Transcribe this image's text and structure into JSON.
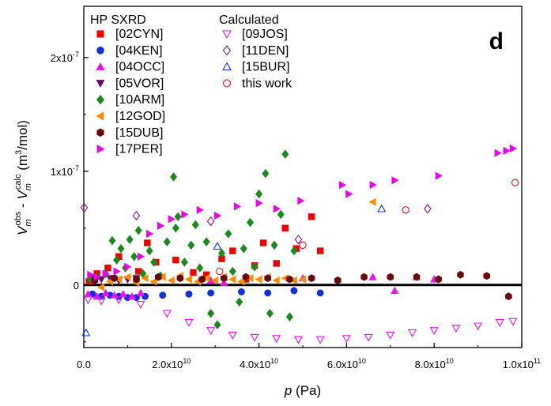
{
  "chart_data": {
    "type": "scatter",
    "panel_label": "d",
    "xlim": [
      0,
      100000000000.0
    ],
    "ylim": [
      -5.5e-08,
      2.45e-07
    ],
    "x_ticks": [
      {
        "value": 0,
        "label": "0.0"
      },
      {
        "value": 20000000000.0,
        "label": "2.0x10",
        "exp": "10"
      },
      {
        "value": 40000000000.0,
        "label": "4.0x10",
        "exp": "10"
      },
      {
        "value": 60000000000.0,
        "label": "6.0x10",
        "exp": "10"
      },
      {
        "value": 80000000000.0,
        "label": "8.0x10",
        "exp": "10"
      },
      {
        "value": 100000000000.0,
        "label": "1.0x10",
        "exp": "11"
      }
    ],
    "y_ticks": [
      {
        "value": 0,
        "label": "0"
      },
      {
        "value": 1e-07,
        "label": "1x10",
        "exp": "-7"
      },
      {
        "value": 2e-07,
        "label": "2x10",
        "exp": "-7"
      }
    ],
    "xlabel": {
      "var": "p",
      "unit": " (Pa)"
    },
    "ylabel": {
      "v": "V",
      "sub": "m",
      "sup_obs": "obs",
      "dash": " - ",
      "sup_calc": "calc",
      "unit": " (m",
      "unit_exp": "3",
      "unit_end": "/mol)"
    },
    "zero_line": 0,
    "legend_groups": [
      {
        "title": "HP SXRD",
        "position": "top-left"
      },
      {
        "title": "Calculated",
        "position": "top-center"
      }
    ],
    "series": [
      {
        "name": "[02CYN]",
        "group": 0,
        "marker": "square",
        "color": "#ee0000",
        "filled": true,
        "points": [
          [
            1200000000.0,
            3e-09
          ],
          [
            3000000000.0,
            1e-08
          ],
          [
            5500000000.0,
            1.5e-08
          ],
          [
            8000000000.0,
            2.5e-08
          ],
          [
            12500000000.0,
            1.2e-08
          ],
          [
            14500000000.0,
            3.7e-08
          ],
          [
            16500000000.0,
            2e-08
          ],
          [
            21000000000.0,
            2.2e-08
          ],
          [
            25000000000.0,
            1.1e-08
          ],
          [
            28000000000.0,
            9e-09
          ],
          [
            31500000000.0,
            2.3e-08
          ],
          [
            34000000000.0,
            3e-08
          ],
          [
            37000000000.0,
            5e-09
          ],
          [
            39000000000.0,
            1.7e-08
          ],
          [
            41000000000.0,
            3.7e-08
          ],
          [
            44000000000.0,
            1.9e-08
          ],
          [
            46000000000.0,
            5e-08
          ],
          [
            48500000000.0,
            3.2e-08
          ],
          [
            52000000000.0,
            6e-08
          ],
          [
            54000000000.0,
            3e-08
          ]
        ]
      },
      {
        "name": "[04KEN]",
        "group": 0,
        "marker": "circle",
        "color": "#1030e0",
        "filled": true,
        "points": [
          [
            2000000000.0,
            -8e-09
          ],
          [
            4000000000.0,
            -1e-08
          ],
          [
            6000000000.0,
            -9e-09
          ],
          [
            8000000000.0,
            -1e-08
          ],
          [
            10000000000.0,
            -1.1e-08
          ],
          [
            12000000000.0,
            -1.1e-08
          ],
          [
            14000000000.0,
            -1e-08
          ],
          [
            18000000000.0,
            -9e-09
          ],
          [
            24000000000.0,
            -8e-09
          ],
          [
            29000000000.0,
            -7e-09
          ],
          [
            36000000000.0,
            -6e-09
          ],
          [
            42000000000.0,
            -7e-09
          ],
          [
            48000000000.0,
            -5e-09
          ],
          [
            54000000000.0,
            -7e-09
          ]
        ]
      },
      {
        "name": "[04OCC]",
        "group": 0,
        "marker": "triangle-up",
        "color": "#ee10ee",
        "filled": true,
        "points": [
          [
            1000000000.0,
            -8e-09
          ],
          [
            3000000000.0,
            -1e-08
          ],
          [
            5000000000.0,
            -7e-09
          ],
          [
            7000000000.0,
            -9e-09
          ],
          [
            9000000000.0,
            -8e-09
          ],
          [
            11000000000.0,
            -1e-08
          ],
          [
            13000000000.0,
            -7e-09
          ],
          [
            29000000000.0,
            4e-09
          ],
          [
            32000000000.0,
            2e-09
          ],
          [
            50000000000.0,
            6e-09
          ],
          [
            66000000000.0,
            7e-09
          ],
          [
            71000000000.0,
            -5e-09
          ],
          [
            76000000000.0,
            7e-09
          ],
          [
            80000000000.0,
            5e-09
          ]
        ]
      },
      {
        "name": "[05VOR]",
        "group": 0,
        "marker": "triangle-down",
        "color": "#6a0a6a",
        "filled": true,
        "points": [
          [
            2000000000.0,
            6e-09
          ],
          [
            4000000000.0,
            5e-09
          ],
          [
            6000000000.0,
            6e-09
          ],
          [
            8000000000.0,
            4e-09
          ],
          [
            10000000000.0,
            5e-09
          ],
          [
            12000000000.0,
            6e-09
          ]
        ]
      },
      {
        "name": "[10ARM]",
        "group": 0,
        "marker": "diamond",
        "color": "#1a8a1a",
        "filled": true,
        "points": [
          [
            1500000000.0,
            5e-09
          ],
          [
            3000000000.0,
            7e-09
          ],
          [
            5000000000.0,
            1e-08
          ],
          [
            6500000000.0,
            3.9e-08
          ],
          [
            7500000000.0,
            2.2e-08
          ],
          [
            8500000000.0,
            3.2e-08
          ],
          [
            9500000000.0,
            1.5e-08
          ],
          [
            10500000000.0,
            4e-08
          ],
          [
            11500000000.0,
            2.5e-08
          ],
          [
            12500000000.0,
            4.8e-08
          ],
          [
            13500000000.0,
            1e-08
          ],
          [
            15000000000.0,
            3e-08
          ],
          [
            16000000000.0,
            2e-08
          ],
          [
            17500000000.0,
            8e-09
          ],
          [
            19000000000.0,
            3.8e-08
          ],
          [
            20500000000.0,
            9.5e-08
          ],
          [
            21000000000.0,
            5e-08
          ],
          [
            21500000000.0,
            6e-08
          ],
          [
            23000000000.0,
            2e-08
          ],
          [
            24500000000.0,
            3.5e-08
          ],
          [
            25500000000.0,
            5.3e-08
          ],
          [
            26500000000.0,
            1.5e-08
          ],
          [
            28000000000.0,
            3.8e-08
          ],
          [
            29000000000.0,
            -2.5e-08
          ],
          [
            30500000000.0,
            -3.5e-08
          ],
          [
            31500000000.0,
            2.8e-08
          ],
          [
            33000000000.0,
            4.5e-08
          ],
          [
            34000000000.0,
            1.2e-08
          ],
          [
            35500000000.0,
            -1.5e-08
          ],
          [
            36500000000.0,
            3.2e-08
          ],
          [
            38000000000.0,
            5.5e-08
          ],
          [
            39000000000.0,
            1.6e-08
          ],
          [
            40000000000.0,
            8e-08
          ],
          [
            41500000000.0,
            9.8e-08
          ],
          [
            42500000000.0,
            -2.5e-08
          ],
          [
            43500000000.0,
            3.5e-08
          ],
          [
            45000000000.0,
            6.2e-08
          ],
          [
            46000000000.0,
            1.15e-07
          ],
          [
            47000000000.0,
            -2.8e-08
          ],
          [
            48000000000.0,
            3e-08
          ]
        ]
      },
      {
        "name": "[12GOD]",
        "group": 0,
        "marker": "triangle-left",
        "color": "#ff8c00",
        "filled": true,
        "points": [
          [
            4000000000.0,
            -2e-09
          ],
          [
            6000000000.0,
            3e-09
          ],
          [
            8000000000.0,
            5e-09
          ],
          [
            10000000000.0,
            7e-09
          ],
          [
            12000000000.0,
            2e-09
          ],
          [
            14000000000.0,
            6e-09
          ],
          [
            16000000000.0,
            3e-09
          ],
          [
            18000000000.0,
            7e-09
          ],
          [
            20000000000.0,
            4e-09
          ],
          [
            22000000000.0,
            8e-09
          ],
          [
            24000000000.0,
            5e-09
          ],
          [
            26000000000.0,
            3e-09
          ],
          [
            28000000000.0,
            6e-09
          ],
          [
            30000000000.0,
            4e-09
          ],
          [
            32000000000.0,
            7e-09
          ],
          [
            34000000000.0,
            5e-09
          ],
          [
            36000000000.0,
            3e-09
          ],
          [
            38000000000.0,
            6e-09
          ],
          [
            40000000000.0,
            5e-09
          ],
          [
            42000000000.0,
            7e-09
          ],
          [
            44000000000.0,
            4e-09
          ],
          [
            46000000000.0,
            6e-09
          ],
          [
            48000000000.0,
            4e-09
          ],
          [
            50000000000.0,
            5e-09
          ],
          [
            66000000000.0,
            7.3e-08
          ]
        ]
      },
      {
        "name": "[15DUB]",
        "group": 0,
        "marker": "hexagon",
        "color": "#6a0808",
        "filled": true,
        "points": [
          [
            2500000000.0,
            4e-09
          ],
          [
            7000000000.0,
            6e-09
          ],
          [
            12000000000.0,
            5e-09
          ],
          [
            17000000000.0,
            7e-09
          ],
          [
            22000000000.0,
            6e-09
          ],
          [
            27000000000.0,
            5e-09
          ],
          [
            32000000000.0,
            6e-09
          ],
          [
            37000000000.0,
            7e-09
          ],
          [
            42000000000.0,
            6e-09
          ],
          [
            47000000000.0,
            5e-09
          ],
          [
            52000000000.0,
            6e-09
          ],
          [
            58000000000.0,
            4e-09
          ],
          [
            64000000000.0,
            7e-09
          ],
          [
            70000000000.0,
            7e-09
          ],
          [
            76000000000.0,
            7e-09
          ],
          [
            81000000000.0,
            5e-09
          ],
          [
            86000000000.0,
            9e-09
          ],
          [
            92000000000.0,
            8e-09
          ],
          [
            97000000000.0,
            -1e-08
          ]
        ]
      },
      {
        "name": "[17PER]",
        "group": 0,
        "marker": "triangle-right",
        "color": "#ee00ee",
        "filled": true,
        "points": [
          [
            1500000000.0,
            9e-09
          ],
          [
            3000000000.0,
            7e-09
          ],
          [
            5000000000.0,
            1e-08
          ],
          [
            7500000000.0,
            1.2e-08
          ],
          [
            10000000000.0,
            1.6e-08
          ],
          [
            13000000000.0,
            2.5e-08
          ],
          [
            15000000000.0,
            4.5e-08
          ],
          [
            17500000000.0,
            5.2e-08
          ],
          [
            20000000000.0,
            5.8e-08
          ],
          [
            23000000000.0,
            6.2e-08
          ],
          [
            26500000000.0,
            6.6e-08
          ],
          [
            30500000000.0,
            6.1e-08
          ],
          [
            35000000000.0,
            6.9e-08
          ],
          [
            40000000000.0,
            7.2e-08
          ],
          [
            44000000000.0,
            6.7e-08
          ],
          [
            49500000000.0,
            7.4e-08
          ],
          [
            59000000000.0,
            8.8e-08
          ],
          [
            60500000000.0,
            8e-08
          ],
          [
            66000000000.0,
            8.8e-08
          ],
          [
            71000000000.0,
            9.2e-08
          ],
          [
            81000000000.0,
            9.6e-08
          ],
          [
            94500000000.0,
            1.16e-07
          ],
          [
            96500000000.0,
            1.18e-07
          ],
          [
            98000000000.0,
            1.2e-07
          ]
        ]
      },
      {
        "name": "[09JOS]",
        "group": 1,
        "marker": "triangle-down",
        "color": "#ee10ee",
        "filled": false,
        "points": [
          [
            1000000000.0,
            -1.3e-08
          ],
          [
            4000000000.0,
            -1.4e-08
          ],
          [
            8000000000.0,
            -1.3e-08
          ],
          [
            13000000000.0,
            -1.7e-08
          ],
          [
            19000000000.0,
            -2.5e-08
          ],
          [
            24000000000.0,
            -3.3e-08
          ],
          [
            29000000000.0,
            -4e-08
          ],
          [
            34000000000.0,
            -4.4e-08
          ],
          [
            39000000000.0,
            -4.6e-08
          ],
          [
            44000000000.0,
            -4.7e-08
          ],
          [
            49000000000.0,
            -4.8e-08
          ],
          [
            54000000000.0,
            -4.8e-08
          ],
          [
            60000000000.0,
            -4.7e-08
          ],
          [
            65000000000.0,
            -4.6e-08
          ],
          [
            70000000000.0,
            -4.4e-08
          ],
          [
            75000000000.0,
            -4.2e-08
          ],
          [
            80000000000.0,
            -4e-08
          ],
          [
            85000000000.0,
            -3.8e-08
          ],
          [
            90000000000.0,
            -3.6e-08
          ],
          [
            95000000000.0,
            -3.3e-08
          ],
          [
            98000000000.0,
            -3.2e-08
          ]
        ]
      },
      {
        "name": "[11DEN]",
        "group": 1,
        "marker": "diamond",
        "color": "#8a0a8a",
        "filled": false,
        "points": [
          [
            100000000.0,
            6.8e-08
          ],
          [
            12000000000.0,
            6.1e-08
          ],
          [
            29000000000.0,
            5.6e-08
          ],
          [
            49000000000.0,
            4e-08
          ],
          [
            78500000000.0,
            6.7e-08
          ]
        ]
      },
      {
        "name": "[15BUR]",
        "group": 1,
        "marker": "triangle-up",
        "color": "#1030e0",
        "filled": false,
        "points": [
          [
            500000000.0,
            -4.2e-08
          ],
          [
            30500000000.0,
            3.4e-08
          ],
          [
            68000000000.0,
            6.7e-08
          ]
        ]
      },
      {
        "name": "this work",
        "group": 1,
        "marker": "circle",
        "color": "#ee1010",
        "filled": false,
        "points": [
          [
            31000000000.0,
            1.2e-08
          ],
          [
            50000000000.0,
            3.5e-08
          ],
          [
            73500000000.0,
            6.6e-08
          ],
          [
            98500000000.0,
            9e-08
          ]
        ]
      }
    ]
  }
}
